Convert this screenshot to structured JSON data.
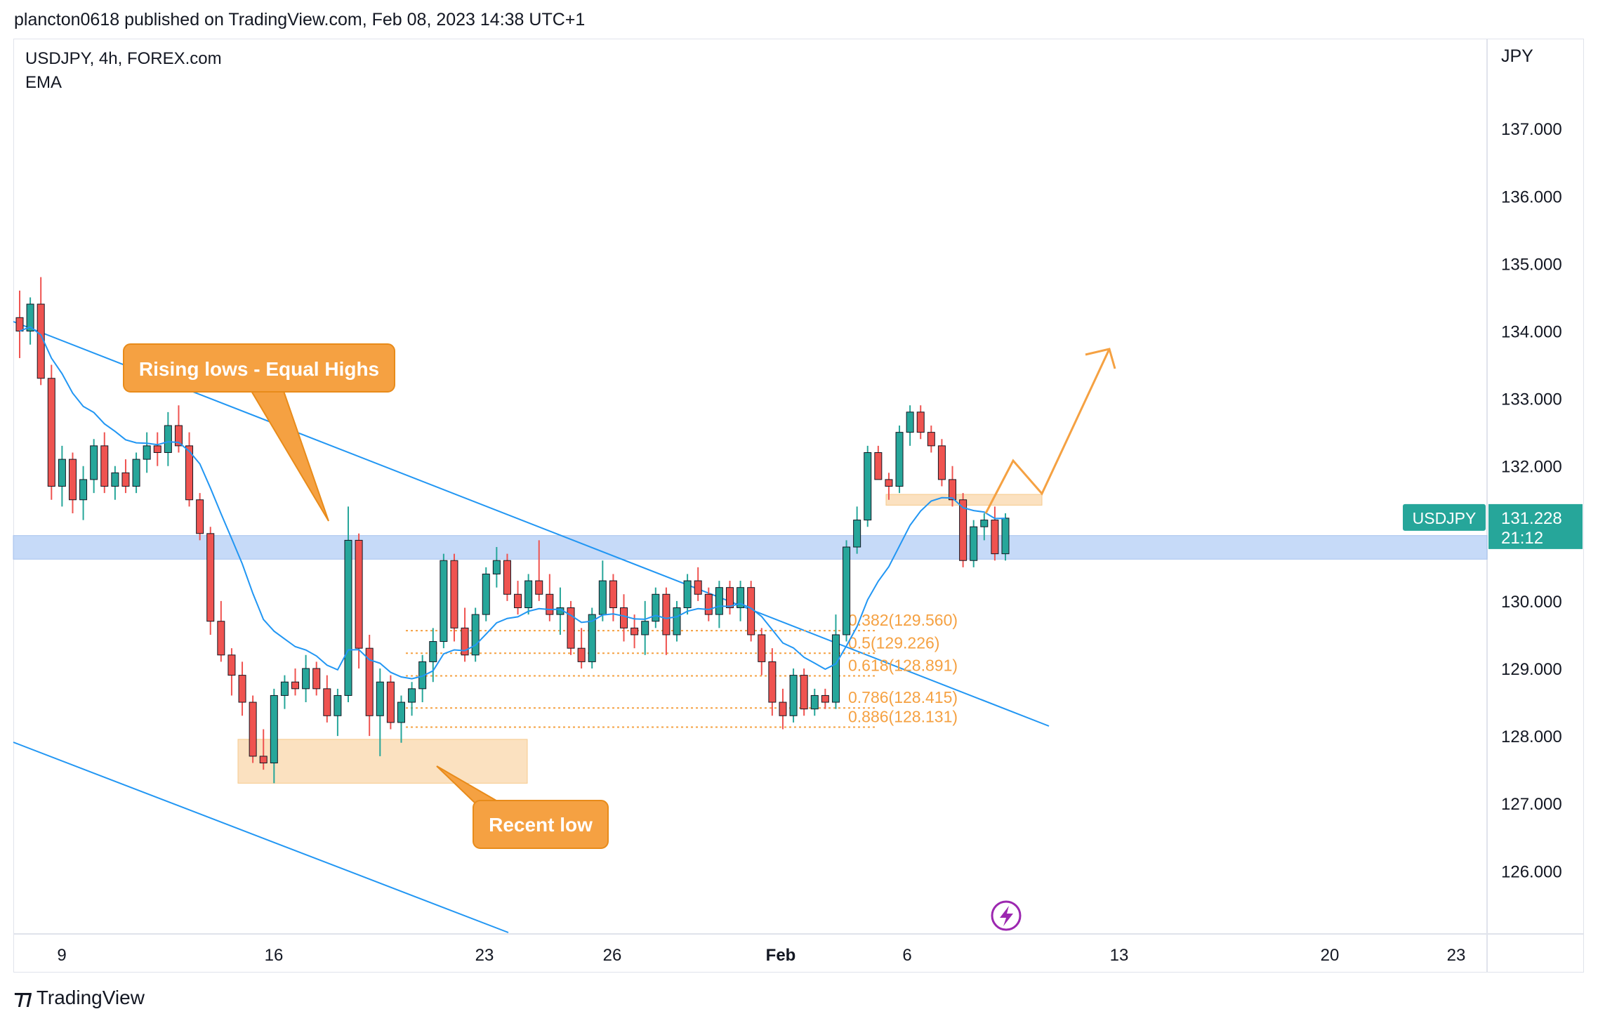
{
  "header": {
    "published": "plancton0618 published on TradingView.com, Feb 08, 2023 14:38 UTC+1"
  },
  "legend": {
    "symbol": "USDJPY, 4h, FOREX.com",
    "indicator": "EMA"
  },
  "price_axis": {
    "currency": "JPY"
  },
  "price_label": {
    "symbol": "USDJPY",
    "price": "131.228",
    "countdown": "21:12"
  },
  "annotations": {
    "callout_top": "Rising lows - Equal Highs",
    "callout_bottom": "Recent low"
  },
  "footer": {
    "brand": "TradingView"
  },
  "colors": {
    "up": "#26a69a",
    "down": "#ef5350",
    "ema": "#2196f3",
    "trend": "#2196f3",
    "annotation": "#f5a142",
    "zone_blue": "#b3cdf5",
    "zone_orange": "#fad9b0"
  },
  "icons": {
    "lightning": "lightning-icon"
  },
  "chart_data": {
    "type": "candlestick",
    "title": "USDJPY, 4h, FOREX.com",
    "ylim": [
      125.0,
      138.3
    ],
    "y_ticks": [
      "137.000",
      "136.000",
      "135.000",
      "134.000",
      "133.000",
      "132.000",
      "131.000",
      "130.000",
      "129.000",
      "128.000",
      "127.000",
      "126.000"
    ],
    "x_ticks": [
      "9",
      "16",
      "23",
      "26",
      "Feb",
      "6",
      "13",
      "20",
      "23"
    ],
    "fib_levels": [
      {
        "label": "0.382(129.560)",
        "value": 129.56
      },
      {
        "label": "0.5(129.226)",
        "value": 129.226
      },
      {
        "label": "0.618(128.891)",
        "value": 128.891
      },
      {
        "label": "0.786(128.415)",
        "value": 128.415
      },
      {
        "label": "0.886(128.131)",
        "value": 128.131
      }
    ],
    "zones": [
      {
        "name": "resistance",
        "from": 130.62,
        "to": 130.97
      },
      {
        "name": "recent_low",
        "from": 127.3,
        "to": 127.95
      },
      {
        "name": "breakout",
        "from": 131.42,
        "to": 131.58
      }
    ],
    "last_price": 131.228,
    "candles": [
      [
        134.2,
        134.6,
        133.6,
        134.0
      ],
      [
        134.0,
        134.5,
        133.8,
        134.4
      ],
      [
        134.4,
        134.8,
        133.2,
        133.3
      ],
      [
        133.3,
        133.5,
        131.5,
        131.7
      ],
      [
        131.7,
        132.3,
        131.4,
        132.1
      ],
      [
        132.1,
        132.2,
        131.3,
        131.5
      ],
      [
        131.5,
        132.0,
        131.2,
        131.8
      ],
      [
        131.8,
        132.4,
        131.6,
        132.3
      ],
      [
        132.3,
        132.5,
        131.6,
        131.7
      ],
      [
        131.7,
        132.0,
        131.5,
        131.9
      ],
      [
        131.9,
        132.1,
        131.6,
        131.7
      ],
      [
        131.7,
        132.2,
        131.6,
        132.1
      ],
      [
        132.1,
        132.5,
        131.9,
        132.3
      ],
      [
        132.3,
        132.5,
        132.0,
        132.2
      ],
      [
        132.2,
        132.8,
        132.0,
        132.6
      ],
      [
        132.6,
        132.9,
        132.2,
        132.3
      ],
      [
        132.3,
        132.5,
        131.4,
        131.5
      ],
      [
        131.5,
        131.6,
        130.9,
        131.0
      ],
      [
        131.0,
        131.1,
        129.5,
        129.7
      ],
      [
        129.7,
        130.0,
        129.1,
        129.2
      ],
      [
        129.2,
        129.3,
        128.6,
        128.9
      ],
      [
        128.9,
        129.1,
        128.3,
        128.5
      ],
      [
        128.5,
        128.6,
        127.6,
        127.7
      ],
      [
        127.7,
        128.1,
        127.5,
        127.6
      ],
      [
        127.6,
        128.7,
        127.3,
        128.6
      ],
      [
        128.6,
        128.9,
        128.4,
        128.8
      ],
      [
        128.8,
        129.0,
        128.6,
        128.7
      ],
      [
        128.7,
        129.2,
        128.5,
        129.0
      ],
      [
        129.0,
        129.1,
        128.6,
        128.7
      ],
      [
        128.7,
        128.9,
        128.2,
        128.3
      ],
      [
        128.3,
        128.7,
        128.0,
        128.6
      ],
      [
        128.6,
        131.4,
        128.5,
        130.9
      ],
      [
        130.9,
        131.0,
        129.0,
        129.3
      ],
      [
        129.3,
        129.5,
        128.0,
        128.3
      ],
      [
        128.3,
        129.0,
        127.7,
        128.8
      ],
      [
        128.8,
        128.9,
        128.1,
        128.2
      ],
      [
        128.2,
        128.6,
        127.9,
        128.5
      ],
      [
        128.5,
        128.8,
        128.3,
        128.7
      ],
      [
        128.7,
        129.2,
        128.5,
        129.1
      ],
      [
        129.1,
        129.6,
        128.8,
        129.4
      ],
      [
        129.4,
        130.7,
        129.3,
        130.6
      ],
      [
        130.6,
        130.7,
        129.4,
        129.6
      ],
      [
        129.6,
        129.9,
        129.1,
        129.2
      ],
      [
        129.2,
        129.9,
        129.1,
        129.8
      ],
      [
        129.8,
        130.5,
        129.7,
        130.4
      ],
      [
        130.4,
        130.8,
        130.2,
        130.6
      ],
      [
        130.6,
        130.7,
        130.0,
        130.1
      ],
      [
        130.1,
        130.3,
        129.8,
        129.9
      ],
      [
        129.9,
        130.4,
        129.8,
        130.3
      ],
      [
        130.3,
        130.9,
        130.0,
        130.1
      ],
      [
        130.1,
        130.4,
        129.7,
        129.8
      ],
      [
        129.8,
        130.2,
        129.5,
        129.9
      ],
      [
        129.9,
        130.0,
        129.2,
        129.3
      ],
      [
        129.3,
        129.6,
        129.0,
        129.1
      ],
      [
        129.1,
        129.9,
        129.0,
        129.8
      ],
      [
        129.8,
        130.6,
        129.7,
        130.3
      ],
      [
        130.3,
        130.4,
        129.7,
        129.9
      ],
      [
        129.9,
        130.1,
        129.4,
        129.6
      ],
      [
        129.6,
        129.8,
        129.3,
        129.5
      ],
      [
        129.5,
        130.0,
        129.2,
        129.7
      ],
      [
        129.7,
        130.2,
        129.6,
        130.1
      ],
      [
        130.1,
        130.2,
        129.2,
        129.5
      ],
      [
        129.5,
        130.0,
        129.4,
        129.9
      ],
      [
        129.9,
        130.4,
        129.8,
        130.3
      ],
      [
        130.3,
        130.5,
        130.0,
        130.1
      ],
      [
        130.1,
        130.2,
        129.7,
        129.8
      ],
      [
        129.8,
        130.3,
        129.6,
        130.2
      ],
      [
        130.2,
        130.3,
        129.8,
        129.9
      ],
      [
        129.9,
        130.3,
        129.7,
        130.2
      ],
      [
        130.2,
        130.3,
        129.4,
        129.5
      ],
      [
        129.5,
        129.6,
        128.9,
        129.1
      ],
      [
        129.1,
        129.3,
        128.3,
        128.5
      ],
      [
        128.5,
        128.7,
        128.1,
        128.3
      ],
      [
        128.3,
        129.0,
        128.2,
        128.9
      ],
      [
        128.9,
        129.0,
        128.3,
        128.4
      ],
      [
        128.4,
        128.7,
        128.3,
        128.6
      ],
      [
        128.6,
        128.7,
        128.4,
        128.5
      ],
      [
        128.5,
        129.8,
        128.4,
        129.5
      ],
      [
        129.5,
        130.9,
        129.4,
        130.8
      ],
      [
        130.8,
        131.4,
        130.7,
        131.2
      ],
      [
        131.2,
        132.3,
        131.1,
        132.2
      ],
      [
        132.2,
        132.3,
        131.8,
        131.8
      ],
      [
        131.8,
        131.9,
        131.5,
        131.7
      ],
      [
        131.7,
        132.6,
        131.6,
        132.5
      ],
      [
        132.5,
        132.9,
        132.3,
        132.8
      ],
      [
        132.8,
        132.9,
        132.4,
        132.5
      ],
      [
        132.5,
        132.6,
        132.2,
        132.3
      ],
      [
        132.3,
        132.4,
        131.7,
        131.8
      ],
      [
        131.8,
        132.0,
        131.4,
        131.5
      ],
      [
        131.5,
        131.6,
        130.5,
        130.6
      ],
      [
        130.6,
        131.2,
        130.5,
        131.1
      ],
      [
        131.1,
        131.3,
        130.9,
        131.2
      ],
      [
        131.2,
        131.4,
        130.6,
        130.7
      ],
      [
        130.7,
        131.3,
        130.6,
        131.228
      ]
    ]
  }
}
